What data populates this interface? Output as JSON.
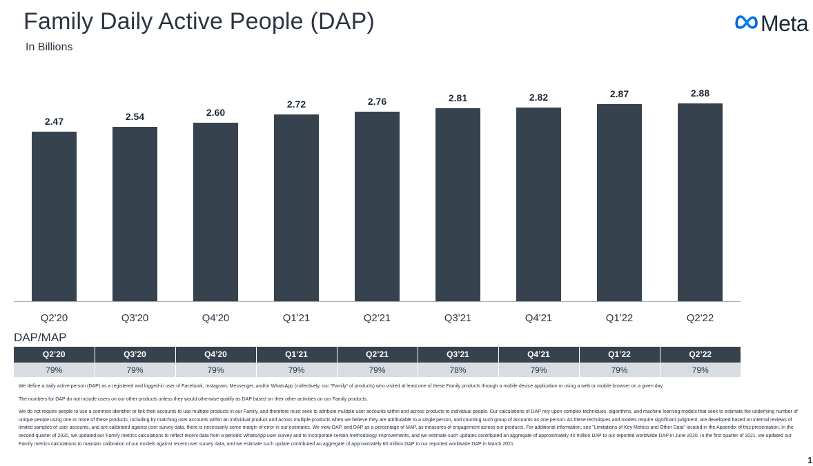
{
  "header": {
    "title": "Family Daily Active People (DAP)",
    "subtitle": "In Billions",
    "logo_text": "Meta",
    "logo_icon": "meta-infinity-icon"
  },
  "chart_data": {
    "type": "bar",
    "title": "Family Daily Active People (DAP)",
    "subtitle": "In Billions",
    "categories": [
      "Q2'20",
      "Q3'20",
      "Q4'20",
      "Q1'21",
      "Q2'21",
      "Q3'21",
      "Q4'21",
      "Q1'22",
      "Q2'22"
    ],
    "values": [
      2.47,
      2.54,
      2.6,
      2.72,
      2.76,
      2.81,
      2.82,
      2.87,
      2.88
    ],
    "value_labels": [
      "2.47",
      "2.54",
      "2.60",
      "2.72",
      "2.76",
      "2.81",
      "2.82",
      "2.87",
      "2.88"
    ],
    "xlabel": "",
    "ylabel": "",
    "grid": false,
    "bar_color": "#36434f"
  },
  "ratio_table": {
    "label": "DAP/MAP",
    "headers": [
      "Q2’20",
      "Q3’20",
      "Q4’20",
      "Q1’21",
      "Q2’21",
      "Q3’21",
      "Q4’21",
      "Q1’22",
      "Q2’22"
    ],
    "values": [
      "79%",
      "79%",
      "79%",
      "79%",
      "79%",
      "78%",
      "79%",
      "79%",
      "79%"
    ],
    "header_color": "#36434f",
    "cell_color": "#d9dde2"
  },
  "notes": [
    "We define a daily active person (DAP) as a registered and logged-in user of Facebook, Instagram, Messenger, and/or WhatsApp (collectively, our \"Family\" of products) who visited at least one of these Family products through a mobile device application or using a web or mobile browser on a given day.",
    "The numbers for DAP do not include users on our other products unless they would otherwise qualify as DAP based on their other activities on our Family products.",
    "We do not require people to use a common identifier or link their accounts to use multiple products in our Family, and therefore must seek to attribute multiple user accounts within and across products to individual people. Our calculations of DAP rely upon complex techniques, algorithms, and machine learning models that seek to estimate the underlying number of unique people using one or more of these products, including by matching user accounts within an individual product and across multiple products when we believe they are attributable to a single person, and counting such group of accounts as one person. As these techniques and models require significant judgment, are developed based on internal reviews of limited samples of user accounts, and are calibrated against user survey data, there is necessarily some margin of error in our estimates. We view DAP, and DAP as a percentage of MAP, as measures of engagement across our products. For additional information, see \"Limitations of Key Metrics and Other Data\" located in the Appendix of this presentation. In the second quarter of 2020, we updated our Family metrics calculations to reflect recent data from a periodic WhatsApp user survey and to incorporate certain methodology improvements, and we estimate such updates contributed an aggregate of approximately 40 million DAP to our reported worldwide DAP in June 2020. In the first quarter of 2021, we updated our Family metrics calculations to maintain calibration of our models against recent user survey data, and we estimate such update contributed an aggregate of approximately 60 million DAP to our reported worldwide DAP in March 2021."
  ],
  "page_number": "1"
}
